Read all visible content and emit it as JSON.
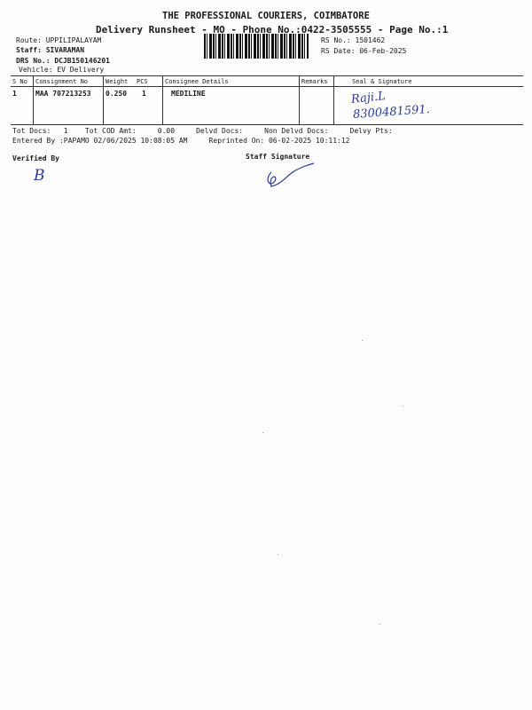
{
  "header": {
    "company": "THE PROFESSIONAL COURIERS, COIMBATORE",
    "subtitle": "Delivery Runsheet - MO - Phone No.:0422-3505555 - Page No.:1"
  },
  "info": {
    "route": "Route: UPPILIPALAYAM",
    "staff": "Staff: SIVARAMAN",
    "drs": "DRS No.: DCJB150146201",
    "vehicle": "Vehicle: EV Delivery",
    "rs_no": "RS No.: 1501462",
    "rs_date": "RS Date: 06-Feb-2025"
  },
  "table": {
    "headers": [
      "S No",
      "Consignment No",
      "Weight",
      "PCS",
      "Consignee Details",
      "Remarks",
      "Seal & Signature"
    ],
    "rows": [
      {
        "sno": "1",
        "consignment": "MAA 707213253",
        "weight": "0.250",
        "pcs": "1",
        "consignee": "MEDILINE",
        "remarks": "",
        "signature": "Raji.L",
        "phone": "8300481591."
      }
    ]
  },
  "totals": {
    "line": "Tot Docs:   1    Tot COD Amt:     0.00     Delvd Docs:     Non Delvd Docs:     Delvy Pts:",
    "entered": "Entered By :PAPAMO 02/06/2025 10:08:05 AM     Reprinted On: 06-02-2025 10:11:12"
  },
  "footer": {
    "verified": "Verified By",
    "staff_sig": "Staff Signature",
    "verified_mark": "B",
    "staff_mark": "g"
  }
}
